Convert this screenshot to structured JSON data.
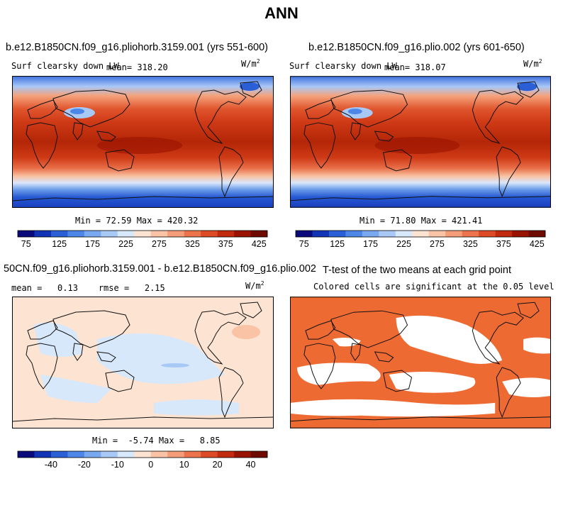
{
  "title": "ANN",
  "colors": {
    "abs_scale": [
      "#0a0a7a",
      "#1133b5",
      "#2a5fd6",
      "#4c86e6",
      "#78a8ef",
      "#a8c8f6",
      "#d8e8fb",
      "#fde3d2",
      "#fbc3a5",
      "#f59c78",
      "#ec734c",
      "#dd4a26",
      "#c12a0c",
      "#9a1300",
      "#6e0a00"
    ],
    "diff_scale": [
      "#0a0a7a",
      "#1133b5",
      "#2a5fd6",
      "#4c86e6",
      "#78a8ef",
      "#a8c8f6",
      "#d8e8fb",
      "#fde3d2",
      "#fbc3a5",
      "#f59c78",
      "#ec734c",
      "#dd4a26",
      "#c12a0c",
      "#9a1300",
      "#6e0a00"
    ],
    "significant": "#ee6a33",
    "coast": "#111111"
  },
  "panels": {
    "top_left": {
      "title": "b.e12.B1850CN.f09_g16.pliohorb.3159.001 (yrs 551-600)",
      "variable": "Surf clearsky down LW",
      "mean_text": "mean= 318.20",
      "units_base": "W/m",
      "units_exp": "2",
      "minmax": "Min =  72.59 Max = 420.32",
      "cbar_labels": [
        "75",
        "125",
        "175",
        "225",
        "275",
        "325",
        "375",
        "425"
      ]
    },
    "top_right": {
      "title": "b.e12.B1850CN.f09_g16.plio.002 (yrs 601-650)",
      "variable": "Surf clearsky down LW",
      "mean_text": "mean= 318.07",
      "units_base": "W/m",
      "units_exp": "2",
      "minmax": "Min =  71.80 Max = 421.41",
      "cbar_labels": [
        "75",
        "125",
        "175",
        "225",
        "275",
        "325",
        "375",
        "425"
      ]
    },
    "bottom_left": {
      "title": "50CN.f09_g16.pliohorb.3159.001 - b.e12.B1850CN.f09_g16.plio.002",
      "stats": "mean =   0.13    rmse =   2.15",
      "units_base": "W/m",
      "units_exp": "2",
      "minmax": "Min =  -5.74 Max =   8.85",
      "cbar_labels": [
        "-40",
        "-20",
        "-10",
        "0",
        "10",
        "20",
        "40"
      ]
    },
    "bottom_right": {
      "title": "T-test of the two means at each grid point",
      "subtitle": "Colored cells are significant at the 0.05 level"
    }
  }
}
